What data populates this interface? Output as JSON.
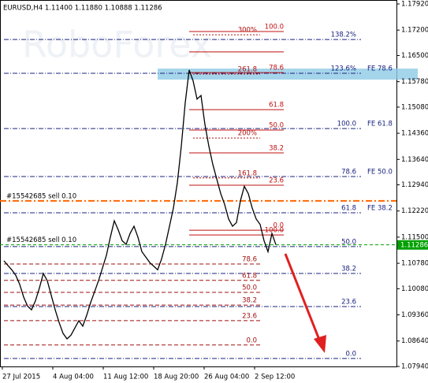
{
  "chart_data": {
    "type": "line",
    "title": "EURUSD,H4  1.11400 1.11880 1.10888 1.11286",
    "ylim": [
      1.0794,
      1.1792
    ],
    "yticks": [
      {
        "value": 1.1792,
        "label": "1.17920"
      },
      {
        "value": 1.172,
        "label": "1.17200"
      },
      {
        "value": 1.165,
        "label": "1.16500"
      },
      {
        "value": 1.1578,
        "label": "1.15780"
      },
      {
        "value": 1.1508,
        "label": "1.15080"
      },
      {
        "value": 1.1436,
        "label": "1.14360"
      },
      {
        "value": 1.1364,
        "label": "1.13640"
      },
      {
        "value": 1.1294,
        "label": "1.12940"
      },
      {
        "value": 1.1222,
        "label": "1.12220"
      },
      {
        "value": 1.115,
        "label": "1.11500"
      },
      {
        "value": 1.1078,
        "label": "1.10780"
      },
      {
        "value": 1.1008,
        "label": "1.10080"
      },
      {
        "value": 1.0936,
        "label": "1.09360"
      },
      {
        "value": 1.0864,
        "label": "1.08640"
      },
      {
        "value": 1.0794,
        "label": "1.07940"
      }
    ],
    "x_labels": [
      "27 Jul 2015",
      "4 Aug 04:00",
      "11 Aug 12:00",
      "18 Aug 20:00",
      "26 Aug 04:00",
      "2 Sep 12:00"
    ],
    "series": [
      {
        "name": "EURUSD",
        "color": "#000000",
        "values": [
          1.1085,
          1.1072,
          1.106,
          1.1045,
          1.102,
          1.0985,
          1.096,
          1.095,
          1.0975,
          1.101,
          1.105,
          1.103,
          1.099,
          1.095,
          1.0915,
          1.0885,
          1.087,
          1.088,
          1.09,
          1.092,
          1.0905,
          1.0935,
          1.097,
          1.1,
          1.103,
          1.1065,
          1.11,
          1.115,
          1.1195,
          1.117,
          1.114,
          1.113,
          1.116,
          1.118,
          1.115,
          1.111,
          1.1095,
          1.108,
          1.107,
          1.106,
          1.109,
          1.113,
          1.118,
          1.123,
          1.13,
          1.14,
          1.152,
          1.161,
          1.158,
          1.153,
          1.154,
          1.146,
          1.14,
          1.135,
          1.131,
          1.127,
          1.124,
          1.12,
          1.118,
          1.119,
          1.125,
          1.129,
          1.127,
          1.123,
          1.12,
          1.1185,
          1.114,
          1.111,
          1.116,
          1.1129
        ]
      }
    ],
    "current_price": {
      "value": 1.11286,
      "label": "1.11286"
    },
    "fib_retracement": [
      {
        "label": "100.0",
        "value": 1.1716
      },
      {
        "label": null,
        "value": 1.166
      },
      {
        "label": "78.6",
        "value": 1.1603
      },
      {
        "label": "61.8",
        "value": 1.1501
      },
      {
        "label": "50.0",
        "value": 1.1445
      },
      {
        "label": "38.2",
        "value": 1.1382
      },
      {
        "label": "23.6",
        "value": 1.1293
      },
      {
        "label": "0.0",
        "value": 1.1169
      },
      {
        "label": "100.0",
        "value": 1.1156
      }
    ],
    "fib_retracement_low": [
      {
        "label": "78.6",
        "value": 1.1076
      },
      {
        "label": "61.8",
        "value": 1.1031
      },
      {
        "label": "50.0",
        "value": 1.0998
      },
      {
        "label": "38.2",
        "value": 1.0963
      },
      {
        "label": "23.6",
        "value": 1.092
      },
      {
        "label": "0.0",
        "value": 1.0853
      }
    ],
    "fib_extension": [
      {
        "label": "300%",
        "value": 1.1707
      },
      {
        "label": "261.8",
        "value": 1.1599
      },
      {
        "label": "200%",
        "value": 1.1423
      },
      {
        "label": "161.8",
        "value": 1.1313
      }
    ],
    "fib_expansion": [
      {
        "label": "138.2%",
        "fe": null,
        "value": 1.1694
      },
      {
        "label": "123.6%",
        "fe": "FE 78.6",
        "value": 1.1601
      },
      {
        "label": "100.0",
        "fe": "FE 61.8",
        "value": 1.1449
      },
      {
        "label": "78.6",
        "fe": "FE 50.0",
        "value": 1.1317
      },
      {
        "label": "61.8",
        "fe": "FE 38.2",
        "value": 1.1217
      },
      {
        "label": "50.0",
        "fe": null,
        "value": 1.1124
      },
      {
        "label": "38.2",
        "fe": null,
        "value": 1.105
      },
      {
        "label": "23.6",
        "fe": null,
        "value": 1.0959
      },
      {
        "label": "0.0",
        "fe": null,
        "value": 1.0816
      }
    ],
    "orders": [
      {
        "label": "#15542685 sell 0.10",
        "value": 1.125,
        "color": "#ff6600"
      },
      {
        "label": "#15542685 sell 0.10",
        "value": 1.1129,
        "color": "#00a000"
      }
    ]
  }
}
